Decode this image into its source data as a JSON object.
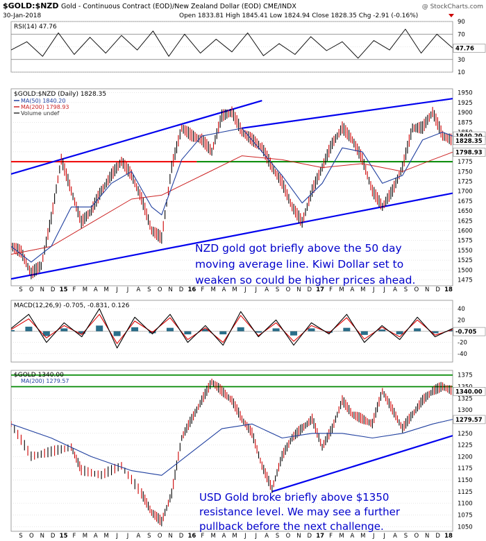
{
  "header": {
    "symbol": "$GOLD:$NZD",
    "description": "Gold - Continuous Contract (EOD)/New Zealand Dollar (EOD) CME/INDX",
    "watermark": "@ StockCharts.com",
    "date": "30-Jan-2018",
    "ohlc": "Open 1833.81  High 1845.41  Low 1824.94  Close 1828.35  Chg -2.91 (-0.16%)"
  },
  "colors": {
    "price": "#111111",
    "up_bar": "#000000",
    "down_bar": "#cc0000",
    "ma50": "#1f3f9f",
    "ma200": "#cc2222",
    "trendline": "#0000ee",
    "support": "#ee0000",
    "green_line": "#008800",
    "macd": "#000000",
    "signal": "#dd0000",
    "histogram": "#2a6e8a",
    "annotation": "#0000cc",
    "grid": "#cccccc"
  },
  "chart_data": [
    {
      "type": "line",
      "title": "RSI(14) 47.76",
      "yticks": [
        10,
        30,
        50,
        70,
        90
      ],
      "ylim": [
        10,
        90
      ],
      "reference_lines": [
        30,
        70
      ],
      "current_label": "47.76",
      "points": [
        [
          0,
          45
        ],
        [
          5,
          58
        ],
        [
          10,
          35
        ],
        [
          15,
          72
        ],
        [
          20,
          38
        ],
        [
          25,
          65
        ],
        [
          30,
          40
        ],
        [
          35,
          68
        ],
        [
          40,
          45
        ],
        [
          45,
          75
        ],
        [
          50,
          35
        ],
        [
          55,
          70
        ],
        [
          60,
          40
        ],
        [
          65,
          62
        ],
        [
          70,
          42
        ],
        [
          75,
          72
        ],
        [
          80,
          36
        ],
        [
          85,
          55
        ],
        [
          90,
          38
        ],
        [
          95,
          66
        ],
        [
          100,
          44
        ],
        [
          105,
          58
        ],
        [
          110,
          32
        ],
        [
          115,
          60
        ],
        [
          120,
          45
        ],
        [
          125,
          78
        ],
        [
          130,
          40
        ],
        [
          135,
          70
        ],
        [
          140,
          48
        ]
      ]
    },
    {
      "type": "line",
      "title": "$GOLD:$NZD (Daily) 1828.35",
      "legend": [
        "MA(50) 1840.20",
        "MA(200) 1798.93",
        "Volume undef"
      ],
      "yticks": [
        1475,
        1500,
        1525,
        1550,
        1575,
        1600,
        1625,
        1650,
        1675,
        1700,
        1725,
        1750,
        1775,
        1800,
        1825,
        1850,
        1875,
        1900,
        1925,
        1950
      ],
      "ylim": [
        1460,
        1960
      ],
      "right_labels": [
        "1840.20",
        "1828.35",
        "1798.93"
      ],
      "price": [
        [
          0,
          1560
        ],
        [
          2,
          1545
        ],
        [
          4,
          1490
        ],
        [
          6,
          1510
        ],
        [
          8,
          1630
        ],
        [
          10,
          1780
        ],
        [
          12,
          1700
        ],
        [
          14,
          1620
        ],
        [
          16,
          1650
        ],
        [
          18,
          1700
        ],
        [
          20,
          1740
        ],
        [
          22,
          1775
        ],
        [
          24,
          1740
        ],
        [
          26,
          1680
        ],
        [
          28,
          1600
        ],
        [
          30,
          1580
        ],
        [
          32,
          1760
        ],
        [
          34,
          1860
        ],
        [
          36,
          1840
        ],
        [
          38,
          1830
        ],
        [
          40,
          1800
        ],
        [
          42,
          1890
        ],
        [
          44,
          1900
        ],
        [
          46,
          1850
        ],
        [
          48,
          1830
        ],
        [
          50,
          1810
        ],
        [
          52,
          1760
        ],
        [
          54,
          1720
        ],
        [
          56,
          1660
        ],
        [
          58,
          1620
        ],
        [
          60,
          1700
        ],
        [
          62,
          1760
        ],
        [
          64,
          1820
        ],
        [
          66,
          1860
        ],
        [
          68,
          1830
        ],
        [
          70,
          1780
        ],
        [
          72,
          1700
        ],
        [
          74,
          1660
        ],
        [
          76,
          1700
        ],
        [
          78,
          1760
        ],
        [
          80,
          1860
        ],
        [
          82,
          1860
        ],
        [
          84,
          1900
        ],
        [
          86,
          1840
        ],
        [
          88,
          1828
        ]
      ],
      "ma50": [
        [
          0,
          1560
        ],
        [
          4,
          1520
        ],
        [
          8,
          1560
        ],
        [
          12,
          1660
        ],
        [
          16,
          1660
        ],
        [
          20,
          1720
        ],
        [
          24,
          1750
        ],
        [
          28,
          1660
        ],
        [
          30,
          1640
        ],
        [
          34,
          1780
        ],
        [
          38,
          1840
        ],
        [
          42,
          1850
        ],
        [
          46,
          1860
        ],
        [
          50,
          1800
        ],
        [
          54,
          1740
        ],
        [
          58,
          1670
        ],
        [
          62,
          1720
        ],
        [
          66,
          1810
        ],
        [
          70,
          1800
        ],
        [
          74,
          1720
        ],
        [
          78,
          1740
        ],
        [
          82,
          1830
        ],
        [
          86,
          1850
        ],
        [
          88,
          1840
        ]
      ],
      "ma200": [
        [
          0,
          1540
        ],
        [
          8,
          1560
        ],
        [
          16,
          1620
        ],
        [
          24,
          1680
        ],
        [
          30,
          1690
        ],
        [
          38,
          1740
        ],
        [
          46,
          1790
        ],
        [
          54,
          1780
        ],
        [
          62,
          1760
        ],
        [
          70,
          1770
        ],
        [
          78,
          1750
        ],
        [
          84,
          1780
        ],
        [
          88,
          1799
        ]
      ],
      "support_level": 1775,
      "trend_upper": [
        [
          -5,
          1725
        ],
        [
          50,
          1930
        ]
      ],
      "trend_lower": [
        [
          -5,
          1465
        ],
        [
          88,
          1695
        ]
      ],
      "trend_upper2": [
        [
          46,
          1860
        ],
        [
          88,
          1935
        ]
      ],
      "annotation": "NZD gold got briefly above the 50 day moving average line. Kiwi Dollar set to weaken so could be higher prices ahead."
    },
    {
      "type": "line",
      "title": "MACD(12,26,9) -0.705, -0.831, 0.126",
      "yticks": [
        -40,
        -20,
        0,
        20,
        40
      ],
      "ylim": [
        -55,
        55
      ],
      "current_label": "-0.705",
      "macd": [
        [
          0,
          5
        ],
        [
          5,
          30
        ],
        [
          10,
          -20
        ],
        [
          15,
          15
        ],
        [
          20,
          -10
        ],
        [
          25,
          40
        ],
        [
          30,
          -30
        ],
        [
          35,
          25
        ],
        [
          40,
          -5
        ],
        [
          45,
          30
        ],
        [
          50,
          -20
        ],
        [
          55,
          10
        ],
        [
          60,
          -25
        ],
        [
          65,
          35
        ],
        [
          70,
          -10
        ],
        [
          75,
          20
        ],
        [
          80,
          -25
        ],
        [
          85,
          15
        ],
        [
          90,
          -5
        ],
        [
          95,
          30
        ],
        [
          100,
          -20
        ],
        [
          105,
          10
        ],
        [
          110,
          -15
        ],
        [
          115,
          25
        ],
        [
          120,
          -10
        ],
        [
          125,
          5
        ]
      ],
      "signal": [
        [
          0,
          3
        ],
        [
          5,
          22
        ],
        [
          10,
          -12
        ],
        [
          15,
          10
        ],
        [
          20,
          -6
        ],
        [
          25,
          30
        ],
        [
          30,
          -22
        ],
        [
          35,
          18
        ],
        [
          40,
          -2
        ],
        [
          45,
          24
        ],
        [
          50,
          -15
        ],
        [
          55,
          6
        ],
        [
          60,
          -20
        ],
        [
          65,
          28
        ],
        [
          70,
          -8
        ],
        [
          75,
          15
        ],
        [
          80,
          -18
        ],
        [
          85,
          10
        ],
        [
          90,
          -3
        ],
        [
          95,
          24
        ],
        [
          100,
          -14
        ],
        [
          105,
          7
        ],
        [
          110,
          -10
        ],
        [
          115,
          20
        ],
        [
          120,
          -7
        ],
        [
          125,
          3
        ]
      ]
    },
    {
      "type": "line",
      "title": "$GOLD 1340.00",
      "legend": [
        "MA(200) 1279.57"
      ],
      "yticks": [
        1050,
        1075,
        1100,
        1125,
        1150,
        1175,
        1200,
        1225,
        1250,
        1275,
        1300,
        1325,
        1350,
        1375
      ],
      "ylim": [
        1040,
        1385
      ],
      "right_labels": [
        "1340.00",
        "1279.57"
      ],
      "price": [
        [
          0,
          1270
        ],
        [
          4,
          1200
        ],
        [
          8,
          1210
        ],
        [
          12,
          1220
        ],
        [
          14,
          1170
        ],
        [
          18,
          1160
        ],
        [
          22,
          1180
        ],
        [
          26,
          1120
        ],
        [
          28,
          1080
        ],
        [
          30,
          1060
        ],
        [
          32,
          1120
        ],
        [
          34,
          1240
        ],
        [
          36,
          1280
        ],
        [
          38,
          1320
        ],
        [
          40,
          1360
        ],
        [
          42,
          1340
        ],
        [
          44,
          1320
        ],
        [
          46,
          1280
        ],
        [
          48,
          1250
        ],
        [
          50,
          1180
        ],
        [
          52,
          1130
        ],
        [
          54,
          1200
        ],
        [
          56,
          1240
        ],
        [
          58,
          1260
        ],
        [
          60,
          1280
        ],
        [
          62,
          1220
        ],
        [
          64,
          1260
        ],
        [
          66,
          1320
        ],
        [
          68,
          1290
        ],
        [
          70,
          1280
        ],
        [
          72,
          1270
        ],
        [
          74,
          1340
        ],
        [
          76,
          1300
        ],
        [
          78,
          1260
        ],
        [
          80,
          1290
        ],
        [
          82,
          1320
        ],
        [
          84,
          1340
        ],
        [
          86,
          1350
        ],
        [
          88,
          1340
        ]
      ],
      "ma200": [
        [
          0,
          1270
        ],
        [
          8,
          1240
        ],
        [
          16,
          1200
        ],
        [
          24,
          1170
        ],
        [
          30,
          1160
        ],
        [
          36,
          1210
        ],
        [
          42,
          1260
        ],
        [
          48,
          1270
        ],
        [
          54,
          1240
        ],
        [
          60,
          1250
        ],
        [
          66,
          1250
        ],
        [
          72,
          1240
        ],
        [
          78,
          1250
        ],
        [
          84,
          1270
        ],
        [
          88,
          1280
        ]
      ],
      "resistance": [
        1350,
        1375
      ],
      "trend": [
        [
          52,
          1125
        ],
        [
          88,
          1245
        ]
      ],
      "annotation": "USD Gold broke briefly above $1350 resistance level. We may see a further pullback before the next challenge."
    }
  ],
  "x_axis": {
    "labels": [
      "S",
      "O",
      "N",
      "D",
      "15",
      "F",
      "M",
      "A",
      "M",
      "J",
      "J",
      "A",
      "S",
      "O",
      "N",
      "D",
      "16",
      "F",
      "M",
      "A",
      "M",
      "J",
      "J",
      "A",
      "S",
      "O",
      "N",
      "D",
      "17",
      "F",
      "M",
      "A",
      "M",
      "J",
      "J",
      "A",
      "S",
      "O",
      "N",
      "D",
      "18"
    ]
  }
}
